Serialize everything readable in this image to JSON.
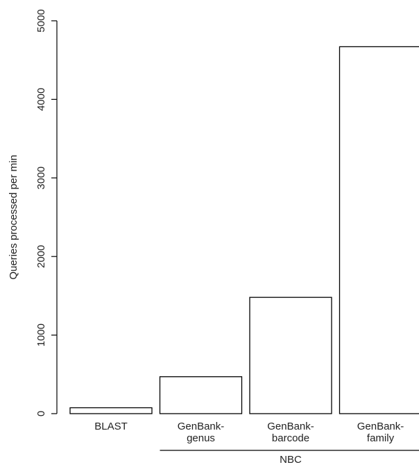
{
  "chart_data": {
    "type": "bar",
    "title": "",
    "xlabel": "",
    "ylabel": "Queries processed per min",
    "ylim": [
      0,
      5000
    ],
    "yticks": [
      0,
      1000,
      2000,
      3000,
      4000,
      5000
    ],
    "grid": false,
    "categories": [
      [
        "BLAST"
      ],
      [
        "GenBank-",
        "genus"
      ],
      [
        "GenBank-",
        "barcode"
      ],
      [
        "GenBank-",
        "family"
      ]
    ],
    "values": [
      75,
      470,
      1480,
      4670
    ],
    "groups": [
      {
        "label": "NBC",
        "span": [
          1,
          3
        ]
      }
    ],
    "colors": {
      "bar_fill": "#ffffff",
      "bar_stroke": "#000000",
      "text": "#222222"
    }
  }
}
